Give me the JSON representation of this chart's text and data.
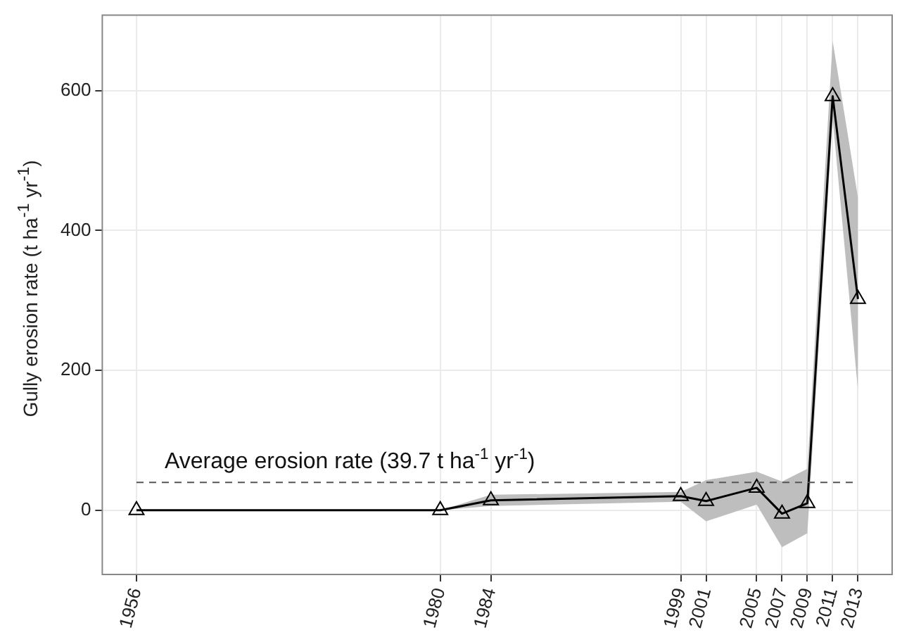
{
  "chart_data": {
    "type": "line",
    "ylabel": "Gully erosion rate (t ha$^{-1}$ yr$^{-1}$)",
    "x": [
      1956,
      1980,
      1984,
      1999,
      2001,
      2005,
      2007,
      2009,
      2011,
      2013
    ],
    "series": [
      {
        "color": "#000000",
        "values": [
          0,
          0,
          14,
          20,
          13,
          32,
          -5,
          10,
          592,
          302
        ],
        "lower": [
          null,
          0,
          6,
          12,
          -16,
          8,
          -53,
          -33,
          560,
          171
        ],
        "upper": [
          null,
          0,
          22,
          26,
          43,
          55,
          41,
          59,
          671,
          447
        ]
      }
    ],
    "xlim": [
      1953.3,
      2015.7
    ],
    "xticks": [
      1956,
      1980,
      1984,
      1999,
      2001,
      2005,
      2007,
      2009,
      2011,
      2013
    ],
    "ylim": [
      -92,
      708
    ],
    "yticks": [
      0,
      200,
      400,
      600
    ],
    "ref_lines": [
      {
        "axis": "y",
        "value": 39.7,
        "label": "Average erosion rate (39.7 t ha$^{-1}$ yr$^{-1}$)",
        "color": "#555555",
        "line_style": "dashed"
      }
    ],
    "grid": true,
    "marker": "triangle",
    "line_style": "solid"
  }
}
